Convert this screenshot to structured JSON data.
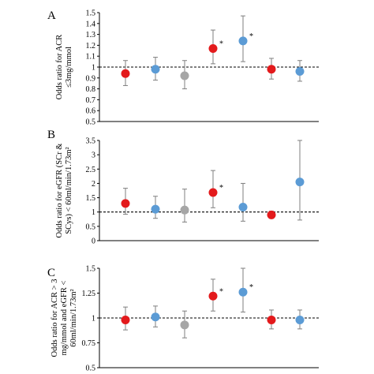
{
  "colors": {
    "red": "#e31a1c",
    "blue": "#5b9bd5",
    "gray": "#a6a6a6"
  },
  "chart_data": [
    {
      "type": "scatter",
      "panel": "A",
      "ylabel_lines": [
        "Odds ratio for ACR",
        "≤3mg/mmol"
      ],
      "ylim": [
        0.5,
        1.5
      ],
      "yticks": [
        0.5,
        0.6,
        0.7,
        0.8,
        0.9,
        1,
        1.1,
        1.2,
        1.3,
        1.4,
        1.5
      ],
      "ytick_labels": [
        "0.5",
        "0.6",
        "0.7",
        "0.8",
        "0.9",
        "1",
        "1.1",
        "1.2",
        "1.3",
        "1.4",
        "1.5"
      ],
      "reference": 1,
      "points": [
        {
          "value": 0.94,
          "lower": 0.83,
          "upper": 1.06,
          "color": "red",
          "star": ""
        },
        {
          "value": 0.98,
          "lower": 0.88,
          "upper": 1.09,
          "color": "blue",
          "star": ""
        },
        {
          "value": 0.92,
          "lower": 0.8,
          "upper": 1.06,
          "color": "gray",
          "star": ""
        },
        {
          "value": 1.17,
          "lower": 1.03,
          "upper": 1.34,
          "color": "red",
          "star": "*"
        },
        {
          "value": 1.24,
          "lower": 1.05,
          "upper": 1.47,
          "color": "blue",
          "star": "*"
        },
        {
          "value": 0.98,
          "lower": 0.89,
          "upper": 1.08,
          "color": "red",
          "star": ""
        },
        {
          "value": 0.96,
          "lower": 0.87,
          "upper": 1.06,
          "color": "blue",
          "star": ""
        }
      ]
    },
    {
      "type": "scatter",
      "panel": "B",
      "ylabel_lines": [
        "Odds ratio for eGFR (SCr &",
        "SCys) < 60ml/min/1.73m²"
      ],
      "ylim": [
        0,
        3.5
      ],
      "yticks": [
        0,
        0.5,
        1,
        1.5,
        2,
        2.5,
        3,
        3.5
      ],
      "ytick_labels": [
        "0",
        "0.5",
        "1",
        "1.5",
        "2",
        "2.5",
        "3",
        "3.5"
      ],
      "reference": 1,
      "points": [
        {
          "value": 1.3,
          "lower": 0.92,
          "upper": 1.83,
          "color": "red",
          "star": ""
        },
        {
          "value": 1.1,
          "lower": 0.78,
          "upper": 1.55,
          "color": "blue",
          "star": ""
        },
        {
          "value": 1.07,
          "lower": 0.65,
          "upper": 1.8,
          "color": "gray",
          "star": ""
        },
        {
          "value": 1.68,
          "lower": 1.15,
          "upper": 2.45,
          "color": "red",
          "star": "*"
        },
        {
          "value": 1.17,
          "lower": 0.68,
          "upper": 2.0,
          "color": "blue",
          "star": ""
        },
        {
          "value": 0.9,
          "lower": 0.78,
          "upper": 1.03,
          "color": "red",
          "star": ""
        },
        {
          "value": 2.05,
          "lower": 0.72,
          "upper": 3.5,
          "color": "blue",
          "star": ""
        }
      ]
    },
    {
      "type": "scatter",
      "panel": "C",
      "ylabel_lines": [
        "Odds ratio for ACR > 3",
        "mg/mmol and eGFR <",
        "60ml/min/1.73m²"
      ],
      "ylim": [
        0.5,
        1.5
      ],
      "yticks": [
        0.5,
        0.75,
        1,
        1.25,
        1.5
      ],
      "ytick_labels": [
        "0.5",
        "0.75",
        "1",
        "1.25",
        "1.5"
      ],
      "reference": 1,
      "points": [
        {
          "value": 0.98,
          "lower": 0.88,
          "upper": 1.11,
          "color": "red",
          "star": ""
        },
        {
          "value": 1.01,
          "lower": 0.91,
          "upper": 1.12,
          "color": "blue",
          "star": ""
        },
        {
          "value": 0.93,
          "lower": 0.8,
          "upper": 1.07,
          "color": "gray",
          "star": ""
        },
        {
          "value": 1.22,
          "lower": 1.07,
          "upper": 1.39,
          "color": "red",
          "star": "*"
        },
        {
          "value": 1.26,
          "lower": 1.06,
          "upper": 1.5,
          "color": "blue",
          "star": "*"
        },
        {
          "value": 0.98,
          "lower": 0.89,
          "upper": 1.08,
          "color": "red",
          "star": ""
        },
        {
          "value": 0.98,
          "lower": 0.89,
          "upper": 1.08,
          "color": "blue",
          "star": ""
        }
      ]
    }
  ]
}
